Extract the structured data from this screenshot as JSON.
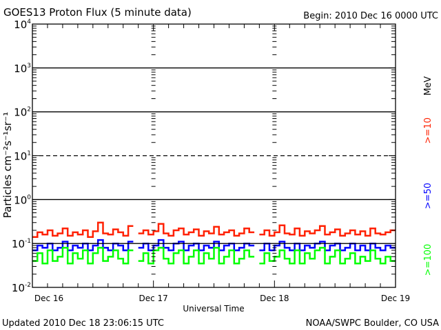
{
  "chart_data": {
    "type": "line",
    "title": "GOES13 Proton Flux (5 minute data)",
    "begin_label": "Begin: 2010 Dec 16 0000 UTC",
    "xlabel": "Universal Time",
    "ylabel": "Particles cm⁻²s⁻¹sr⁻¹",
    "y_scale": "log",
    "ylim": [
      0.01,
      10000
    ],
    "y_ticks": [
      {
        "base": "10",
        "exp": "4",
        "value": 10000
      },
      {
        "base": "10",
        "exp": "3",
        "value": 1000
      },
      {
        "base": "10",
        "exp": "2",
        "value": 100
      },
      {
        "base": "10",
        "exp": "1",
        "value": 10
      },
      {
        "base": "10",
        "exp": "0",
        "value": 1
      },
      {
        "base": "10",
        "exp": "-1",
        "value": 0.1
      },
      {
        "base": "10",
        "exp": "-2",
        "value": 0.01
      }
    ],
    "threshold_lines": [
      {
        "value": 1000,
        "style": "solid"
      },
      {
        "value": 100,
        "style": "solid"
      },
      {
        "value": 10,
        "style": "dashed"
      },
      {
        "value": 1,
        "style": "solid"
      },
      {
        "value": 0.1,
        "style": "solid"
      }
    ],
    "x_ticks": [
      "Dec 16",
      "Dec 17",
      "Dec 18",
      "Dec 19"
    ],
    "x_range_hours": [
      0,
      72
    ],
    "x_step_hours": 1,
    "grid": false,
    "energy_unit": "MeV",
    "series": [
      {
        "name": ">=10",
        "color": "#ff2000",
        "values": [
          0.14,
          0.18,
          0.16,
          0.2,
          0.15,
          0.17,
          0.22,
          0.15,
          0.18,
          0.16,
          0.2,
          0.14,
          0.19,
          0.3,
          0.17,
          0.16,
          0.21,
          0.18,
          0.15,
          0.25,
          null,
          0.17,
          0.2,
          0.16,
          0.19,
          0.28,
          0.17,
          0.15,
          0.2,
          0.22,
          0.16,
          0.18,
          0.21,
          0.15,
          0.19,
          0.17,
          0.24,
          0.16,
          0.18,
          0.2,
          0.15,
          0.17,
          0.22,
          0.18,
          null,
          0.16,
          0.2,
          0.15,
          0.18,
          0.26,
          0.17,
          0.16,
          0.22,
          0.15,
          0.19,
          0.17,
          0.2,
          0.25,
          0.16,
          0.18,
          0.21,
          0.15,
          0.17,
          0.2,
          0.16,
          0.19,
          0.15,
          0.22,
          0.17,
          0.16,
          0.18,
          0.2
        ]
      },
      {
        "name": ">=50",
        "color": "#0000ff",
        "values": [
          0.07,
          0.09,
          0.08,
          0.1,
          0.07,
          0.08,
          0.11,
          0.07,
          0.09,
          0.08,
          0.1,
          0.07,
          0.09,
          0.12,
          0.08,
          0.07,
          0.1,
          0.09,
          0.07,
          0.11,
          null,
          0.08,
          0.1,
          0.07,
          0.09,
          0.12,
          0.08,
          0.07,
          0.1,
          0.11,
          0.07,
          0.09,
          0.1,
          0.07,
          0.09,
          0.08,
          0.11,
          0.07,
          0.09,
          0.1,
          0.07,
          0.08,
          0.1,
          0.09,
          null,
          0.07,
          0.1,
          0.07,
          0.09,
          0.11,
          0.08,
          0.07,
          0.1,
          0.07,
          0.09,
          0.08,
          0.1,
          0.11,
          0.07,
          0.09,
          0.1,
          0.07,
          0.08,
          0.1,
          0.07,
          0.09,
          0.07,
          0.1,
          0.08,
          0.07,
          0.09,
          0.08
        ]
      },
      {
        "name": ">=100",
        "color": "#00ff00",
        "values": [
          0.04,
          0.06,
          0.035,
          0.07,
          0.04,
          0.05,
          0.08,
          0.035,
          0.06,
          0.045,
          0.07,
          0.035,
          0.06,
          0.08,
          0.04,
          0.05,
          0.07,
          0.045,
          0.035,
          0.07,
          null,
          0.04,
          0.06,
          0.035,
          0.07,
          0.08,
          0.045,
          0.035,
          0.06,
          0.07,
          0.035,
          0.05,
          0.07,
          0.035,
          0.06,
          0.045,
          0.08,
          0.035,
          0.05,
          0.07,
          0.035,
          0.045,
          0.07,
          0.05,
          null,
          0.035,
          0.06,
          0.04,
          0.05,
          0.07,
          0.045,
          0.035,
          0.07,
          0.035,
          0.06,
          0.045,
          0.07,
          0.08,
          0.035,
          0.05,
          0.07,
          0.035,
          0.045,
          0.06,
          0.035,
          0.05,
          0.04,
          0.07,
          0.045,
          0.035,
          0.05,
          0.04
        ]
      }
    ]
  },
  "footer": {
    "updated": "Updated 2010 Dec 18 23:06:15 UTC",
    "source": "NOAA/SWPC Boulder, CO USA"
  }
}
